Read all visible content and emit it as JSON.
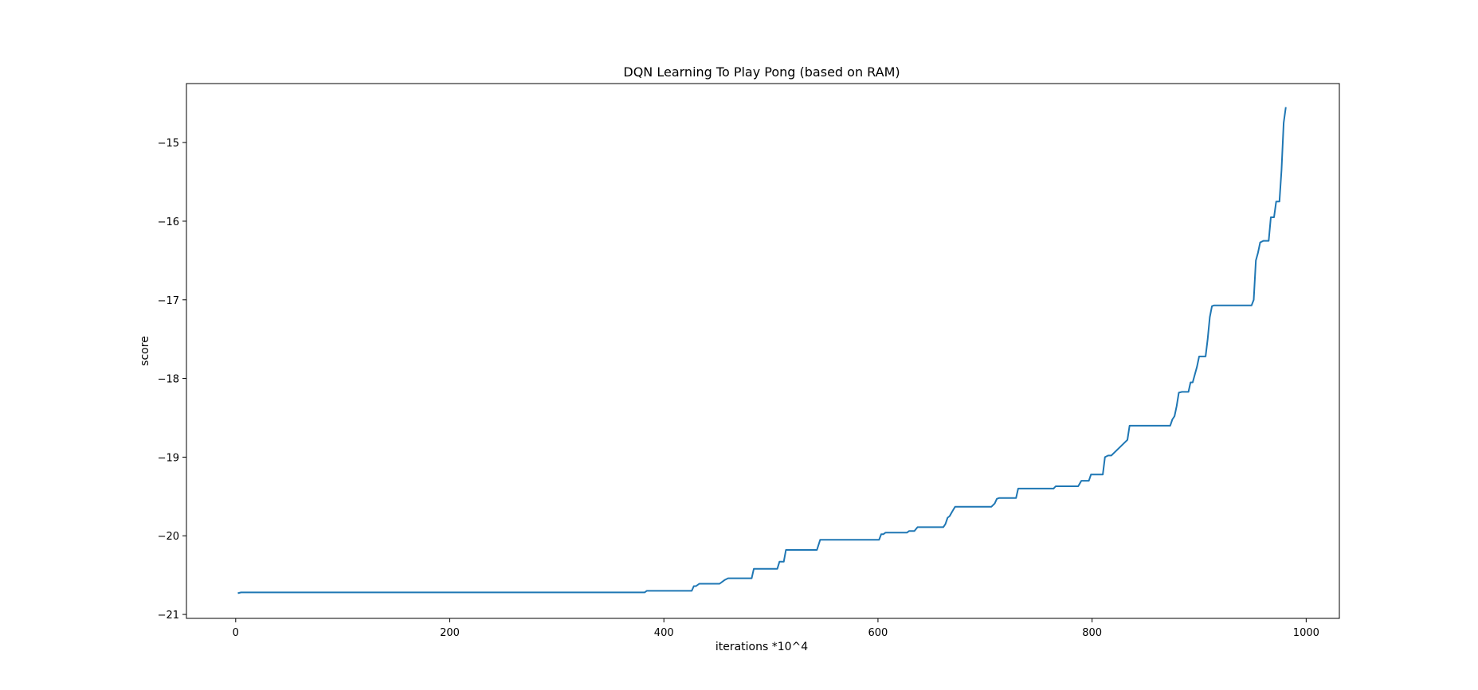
{
  "chart_data": {
    "type": "line",
    "title": "DQN Learning To Play Pong (based on RAM)",
    "xlabel": "iterations *10^4",
    "ylabel": "score",
    "xlim": [
      -46,
      1031
    ],
    "ylim": [
      -21.05,
      -14.25
    ],
    "xticks": [
      0,
      200,
      400,
      600,
      800,
      1000
    ],
    "xtick_labels": [
      "0",
      "200",
      "400",
      "600",
      "800",
      "1000"
    ],
    "yticks": [
      -21,
      -20,
      -19,
      -18,
      -17,
      -16,
      -15
    ],
    "ytick_labels": [
      "−21",
      "−20",
      "−19",
      "−18",
      "−17",
      "−16",
      "−15"
    ],
    "grid": false,
    "legend": "none",
    "line_color": "#1f77b4",
    "series": [
      {
        "x": [
          2,
          5,
          382,
          384,
          426,
          428,
          430,
          433,
          452,
          455,
          457,
          460,
          482,
          484,
          506,
          508,
          512,
          514,
          543,
          546,
          601,
          603,
          605,
          607,
          627,
          629,
          634,
          637,
          661,
          663,
          665,
          667,
          669,
          672,
          706,
          709,
          711,
          713,
          729,
          731,
          764,
          766,
          787,
          790,
          797,
          799,
          810,
          812,
          815,
          818,
          833,
          835,
          838,
          840,
          873,
          875,
          877,
          879,
          881,
          884,
          890,
          892,
          894,
          896,
          898,
          900,
          906,
          908,
          910,
          912,
          914,
          916,
          949,
          951,
          953,
          955,
          957,
          960,
          965,
          967,
          970,
          972,
          975,
          977,
          979,
          981
        ],
        "y": [
          -20.73,
          -20.72,
          -20.72,
          -20.7,
          -20.7,
          -20.64,
          -20.64,
          -20.61,
          -20.61,
          -20.58,
          -20.56,
          -20.54,
          -20.54,
          -20.42,
          -20.42,
          -20.33,
          -20.33,
          -20.18,
          -20.18,
          -20.05,
          -20.05,
          -19.98,
          -19.98,
          -19.96,
          -19.96,
          -19.94,
          -19.94,
          -19.89,
          -19.89,
          -19.85,
          -19.77,
          -19.75,
          -19.7,
          -19.63,
          -19.63,
          -19.59,
          -19.53,
          -19.52,
          -19.52,
          -19.4,
          -19.4,
          -19.37,
          -19.37,
          -19.3,
          -19.3,
          -19.22,
          -19.22,
          -19.0,
          -18.98,
          -18.98,
          -18.78,
          -18.6,
          -18.6,
          -18.6,
          -18.6,
          -18.52,
          -18.48,
          -18.35,
          -18.18,
          -18.17,
          -18.17,
          -18.05,
          -18.05,
          -17.95,
          -17.85,
          -17.72,
          -17.72,
          -17.5,
          -17.22,
          -17.08,
          -17.07,
          -17.07,
          -17.07,
          -17.0,
          -16.5,
          -16.4,
          -16.27,
          -16.25,
          -16.25,
          -15.95,
          -15.95,
          -15.75,
          -15.75,
          -15.35,
          -14.75,
          -14.55
        ]
      }
    ]
  }
}
